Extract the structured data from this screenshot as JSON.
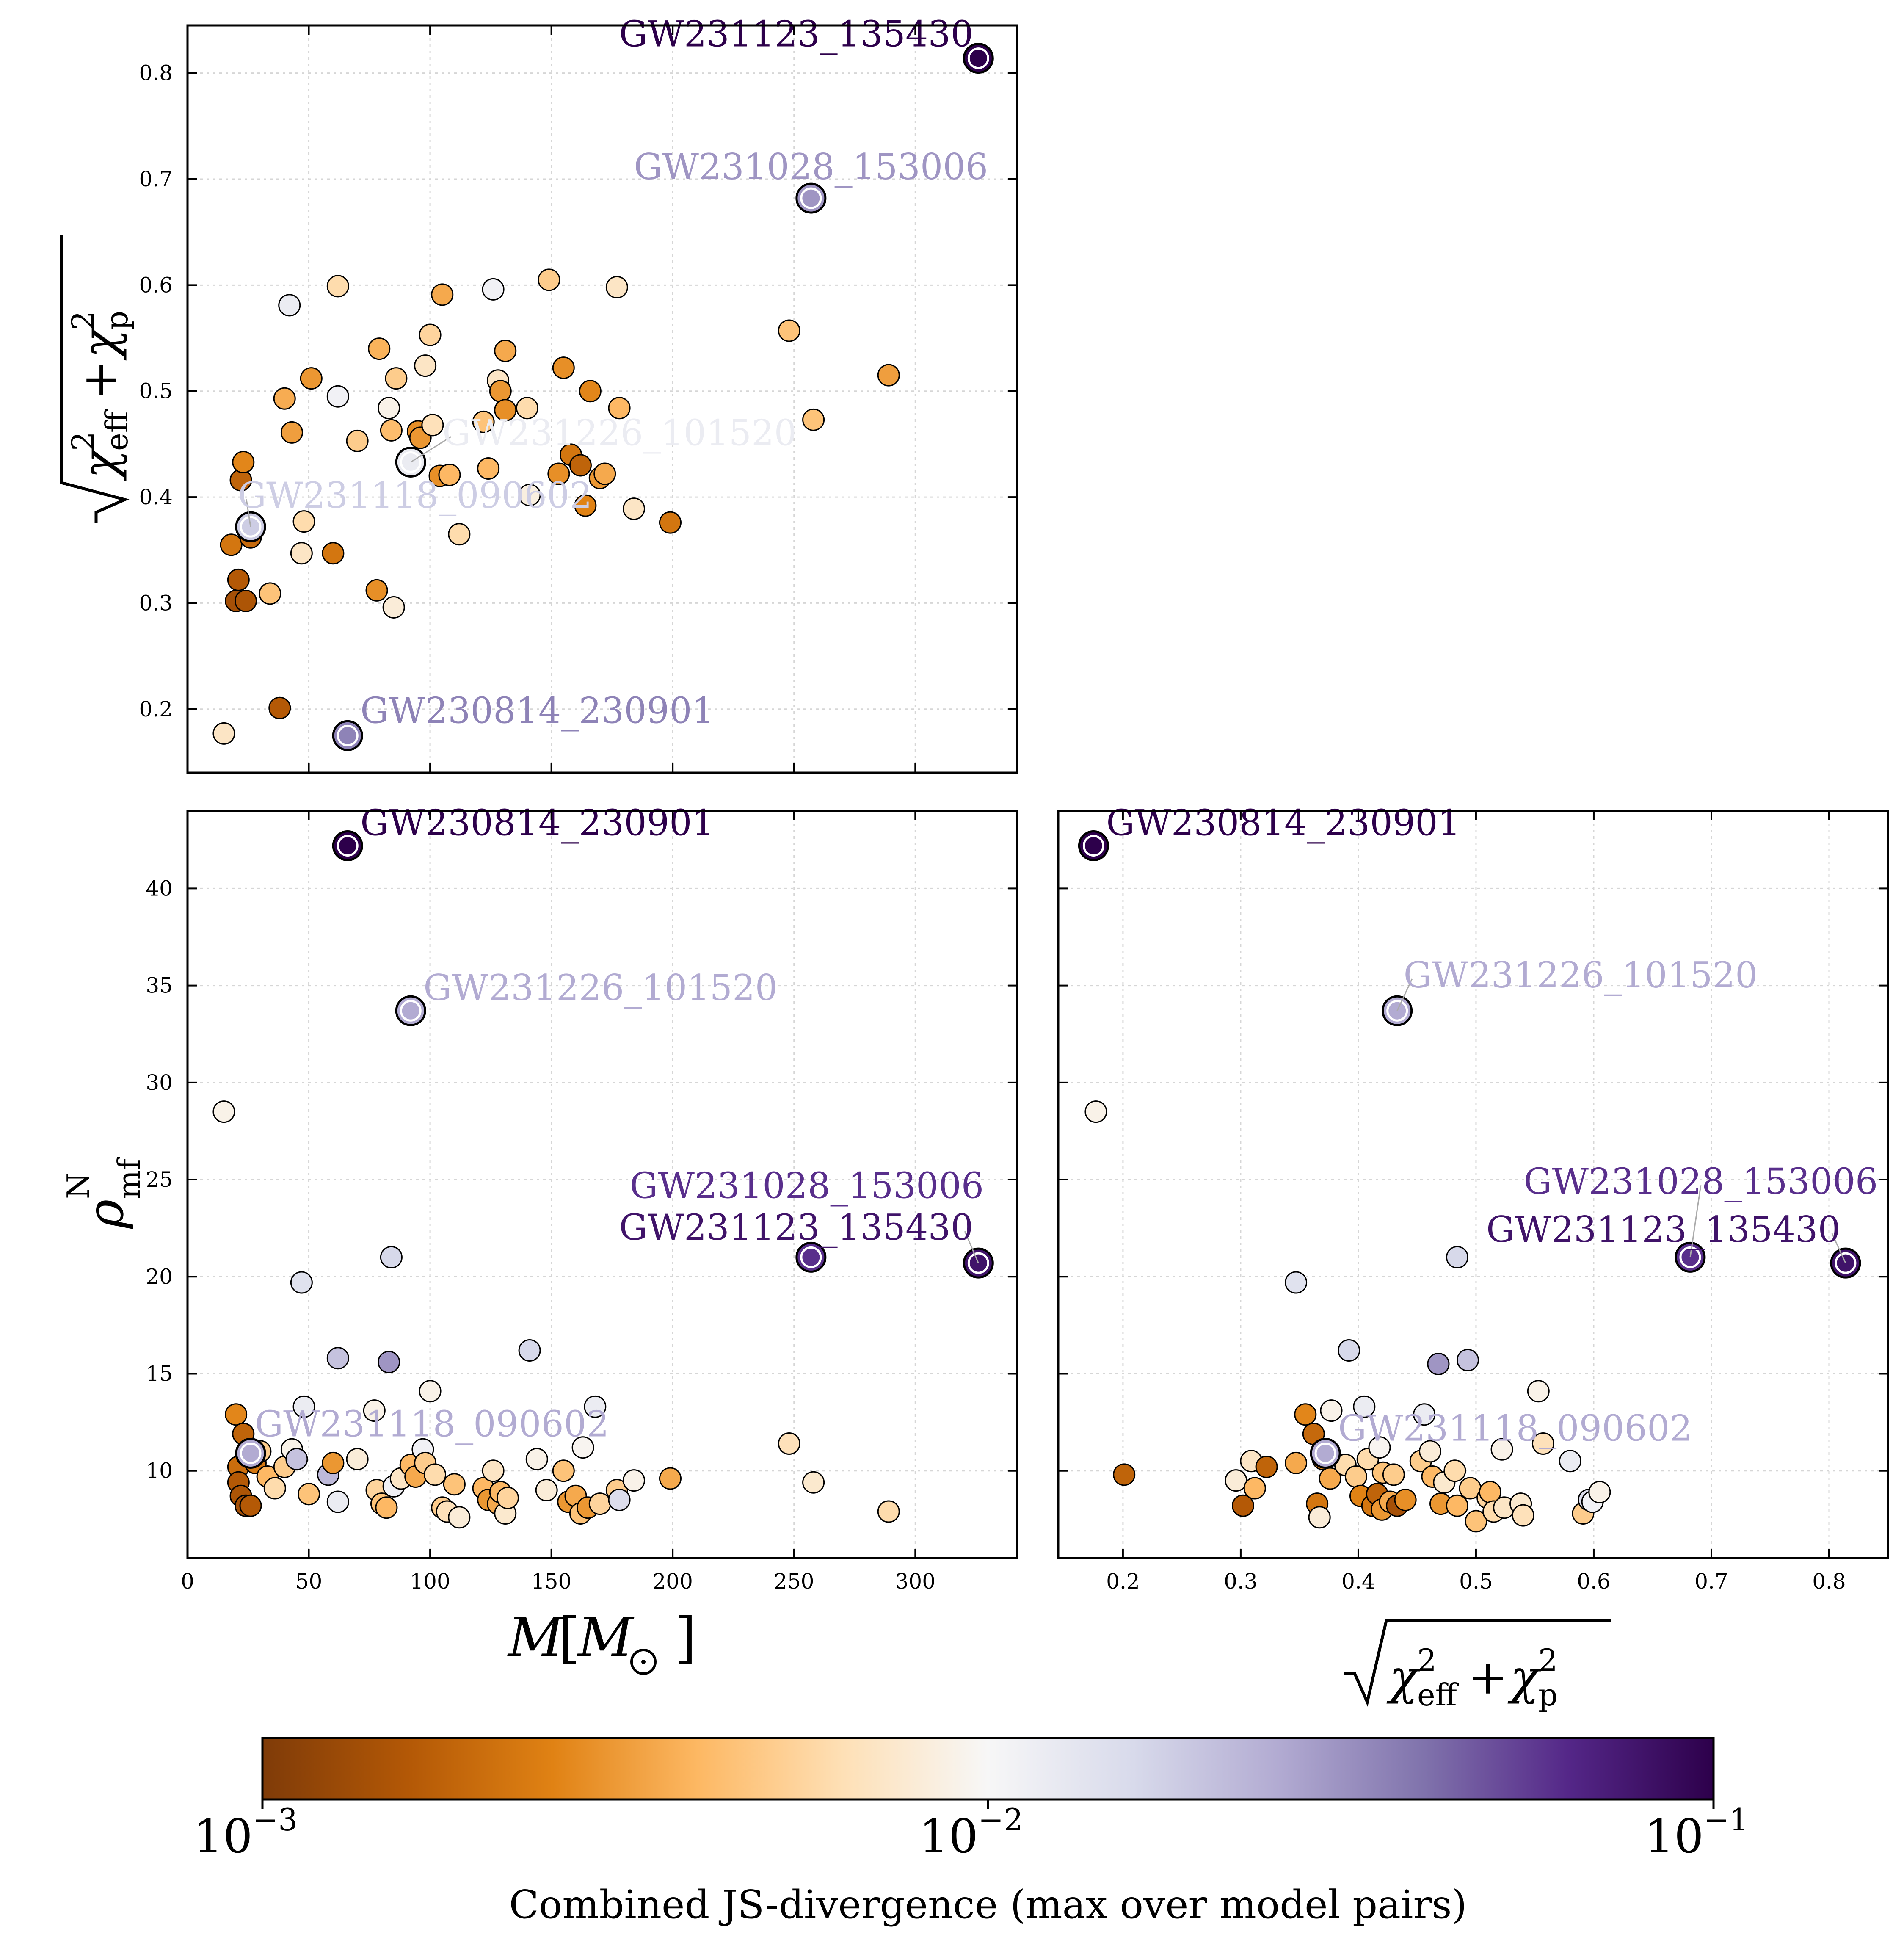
{
  "chart_data": [
    {
      "type": "scatter",
      "panel": "top-left",
      "xlabel": "",
      "ylabel": "sqrt(chi_eff^2 + chi_p^2)",
      "xlim": [
        0,
        342
      ],
      "ylim": [
        0.14,
        0.845
      ],
      "xticks": [
        0,
        50,
        100,
        150,
        200,
        250,
        300
      ],
      "xtick_labels": [
        "",
        "",
        "",
        "",
        "",
        "",
        ""
      ],
      "yticks": [
        0.2,
        0.3,
        0.4,
        0.5,
        0.6,
        0.7,
        0.8
      ],
      "ytick_labels": [
        "0.2",
        "0.3",
        "0.4",
        "0.5",
        "0.6",
        "0.7",
        "0.8"
      ],
      "grid": true,
      "highlighted": [
        {
          "name": "GW231123_135430",
          "x": 326,
          "y": 0.814,
          "js": 0.1,
          "label_anchor": "left"
        },
        {
          "name": "GW231028_153006",
          "x": 257,
          "y": 0.682,
          "js": 0.03,
          "label_anchor": "above"
        },
        {
          "name": "GW231226_101520",
          "x": 92,
          "y": 0.433,
          "js": 0.012,
          "label_anchor": "right"
        },
        {
          "name": "GW231118_090602",
          "x": 26,
          "y": 0.372,
          "js": 0.018,
          "label_anchor": "above-right"
        },
        {
          "name": "GW230814_230901",
          "x": 66,
          "y": 0.175,
          "js": 0.035,
          "label_anchor": "right"
        }
      ],
      "points": [
        [
          15,
          0.177,
          0.007
        ],
        [
          18,
          0.355,
          0.0022
        ],
        [
          20,
          0.302,
          0.0014
        ],
        [
          21,
          0.322,
          0.0016
        ],
        [
          22,
          0.416,
          0.0018
        ],
        [
          23,
          0.433,
          0.0026
        ],
        [
          24,
          0.302,
          0.0015
        ],
        [
          25,
          0.37,
          0.0017
        ],
        [
          26,
          0.362,
          0.0019
        ],
        [
          34,
          0.309,
          0.0045
        ],
        [
          38,
          0.201,
          0.0016
        ],
        [
          40,
          0.493,
          0.0036
        ],
        [
          42,
          0.581,
          0.012
        ],
        [
          43,
          0.461,
          0.0032
        ],
        [
          47,
          0.347,
          0.007
        ],
        [
          48,
          0.377,
          0.006
        ],
        [
          51,
          0.512,
          0.003
        ],
        [
          60,
          0.347,
          0.0022
        ],
        [
          62,
          0.599,
          0.006
        ],
        [
          62,
          0.495,
          0.011
        ],
        [
          70,
          0.453,
          0.005
        ],
        [
          78,
          0.312,
          0.0028
        ],
        [
          79,
          0.54,
          0.0038
        ],
        [
          83,
          0.484,
          0.009
        ],
        [
          84,
          0.463,
          0.0042
        ],
        [
          85,
          0.296,
          0.008
        ],
        [
          86,
          0.512,
          0.005
        ],
        [
          95,
          0.462,
          0.0028
        ],
        [
          96,
          0.456,
          0.003
        ],
        [
          98,
          0.524,
          0.007
        ],
        [
          100,
          0.553,
          0.0055
        ],
        [
          101,
          0.468,
          0.0065
        ],
        [
          104,
          0.42,
          0.0028
        ],
        [
          105,
          0.591,
          0.0035
        ],
        [
          108,
          0.421,
          0.004
        ],
        [
          112,
          0.365,
          0.006
        ],
        [
          122,
          0.471,
          0.0045
        ],
        [
          124,
          0.427,
          0.004
        ],
        [
          126,
          0.596,
          0.011
        ],
        [
          128,
          0.51,
          0.007
        ],
        [
          129,
          0.5,
          0.003
        ],
        [
          131,
          0.538,
          0.0035
        ],
        [
          131,
          0.482,
          0.0028
        ],
        [
          140,
          0.484,
          0.006
        ],
        [
          141,
          0.402,
          0.0085
        ],
        [
          149,
          0.605,
          0.005
        ],
        [
          153,
          0.422,
          0.0028
        ],
        [
          155,
          0.522,
          0.0028
        ],
        [
          158,
          0.44,
          0.0022
        ],
        [
          162,
          0.43,
          0.0018
        ],
        [
          164,
          0.392,
          0.0025
        ],
        [
          166,
          0.5,
          0.0026
        ],
        [
          170,
          0.418,
          0.003
        ],
        [
          172,
          0.422,
          0.0035
        ],
        [
          177,
          0.598,
          0.007
        ],
        [
          178,
          0.484,
          0.004
        ],
        [
          184,
          0.389,
          0.007
        ],
        [
          199,
          0.376,
          0.0022
        ],
        [
          248,
          0.557,
          0.0045
        ],
        [
          258,
          0.473,
          0.0045
        ],
        [
          289,
          0.515,
          0.0032
        ]
      ]
    },
    {
      "type": "scatter",
      "panel": "bottom-left",
      "xlabel": "M [M_sun]",
      "ylabel": "rho_mf^N",
      "xlim": [
        0,
        342
      ],
      "ylim": [
        5.5,
        44
      ],
      "xticks": [
        0,
        50,
        100,
        150,
        200,
        250,
        300
      ],
      "xtick_labels": [
        "0",
        "50",
        "100",
        "150",
        "200",
        "250",
        "300"
      ],
      "yticks": [
        10,
        15,
        20,
        25,
        30,
        35,
        40
      ],
      "ytick_labels": [
        "10",
        "15",
        "20",
        "25",
        "30",
        "35",
        "40"
      ],
      "grid": true,
      "highlighted": [
        {
          "name": "GW230814_230901",
          "x": 66,
          "y": 42.2,
          "js": 0.1,
          "label_anchor": "right"
        },
        {
          "name": "GW231226_101520",
          "x": 92,
          "y": 33.7,
          "js": 0.025,
          "label_anchor": "right"
        },
        {
          "name": "GW231028_153006",
          "x": 257,
          "y": 21.0,
          "js": 0.06,
          "label_anchor": "above"
        },
        {
          "name": "GW231123_135430",
          "x": 326,
          "y": 20.7,
          "js": 0.08,
          "label_anchor": "left"
        },
        {
          "name": "GW231118_090602",
          "x": 26,
          "y": 10.9,
          "js": 0.025,
          "label_anchor": "above-right"
        }
      ],
      "points": [
        [
          15,
          28.5,
          0.009
        ],
        [
          20,
          12.9,
          0.0026
        ],
        [
          21,
          10.2,
          0.002
        ],
        [
          21,
          9.4,
          0.0016
        ],
        [
          22,
          8.7,
          0.0015
        ],
        [
          23,
          11.9,
          0.0018
        ],
        [
          24,
          8.2,
          0.0014
        ],
        [
          26,
          8.2,
          0.0016
        ],
        [
          28,
          10.4,
          0.0022
        ],
        [
          30,
          11.0,
          0.005
        ],
        [
          33,
          9.7,
          0.004
        ],
        [
          36,
          9.1,
          0.006
        ],
        [
          40,
          10.2,
          0.005
        ],
        [
          43,
          11.1,
          0.009
        ],
        [
          45,
          10.6,
          0.02
        ],
        [
          47,
          19.7,
          0.014
        ],
        [
          48,
          13.3,
          0.012
        ],
        [
          50,
          8.8,
          0.0045
        ],
        [
          58,
          9.8,
          0.022
        ],
        [
          60,
          10.4,
          0.003
        ],
        [
          62,
          15.8,
          0.02
        ],
        [
          62,
          8.4,
          0.012
        ],
        [
          70,
          10.6,
          0.008
        ],
        [
          77,
          13.1,
          0.009
        ],
        [
          78,
          9.0,
          0.0055
        ],
        [
          80,
          8.3,
          0.0045
        ],
        [
          82,
          8.1,
          0.004
        ],
        [
          83,
          15.6,
          0.03
        ],
        [
          84,
          21.0,
          0.016
        ],
        [
          85,
          9.2,
          0.011
        ],
        [
          88,
          9.6,
          0.007
        ],
        [
          92,
          10.3,
          0.004
        ],
        [
          94,
          9.7,
          0.0035
        ],
        [
          97,
          11.1,
          0.011
        ],
        [
          98,
          10.4,
          0.005
        ],
        [
          100,
          14.1,
          0.009
        ],
        [
          102,
          9.8,
          0.006
        ],
        [
          105,
          8.1,
          0.005
        ],
        [
          107,
          7.9,
          0.0065
        ],
        [
          110,
          9.3,
          0.0045
        ],
        [
          112,
          7.6,
          0.008
        ],
        [
          122,
          9.1,
          0.004
        ],
        [
          124,
          8.5,
          0.003
        ],
        [
          126,
          10.0,
          0.007
        ],
        [
          128,
          8.3,
          0.0035
        ],
        [
          129,
          8.9,
          0.004
        ],
        [
          131,
          7.8,
          0.0075
        ],
        [
          132,
          8.6,
          0.0055
        ],
        [
          141,
          16.2,
          0.016
        ],
        [
          144,
          10.6,
          0.009
        ],
        [
          148,
          9.0,
          0.008
        ],
        [
          155,
          10.0,
          0.0045
        ],
        [
          157,
          8.4,
          0.003
        ],
        [
          160,
          8.7,
          0.0035
        ],
        [
          162,
          7.8,
          0.0045
        ],
        [
          163,
          11.2,
          0.0095
        ],
        [
          165,
          8.1,
          0.003
        ],
        [
          168,
          13.3,
          0.012
        ],
        [
          170,
          8.3,
          0.0055
        ],
        [
          177,
          9.0,
          0.005
        ],
        [
          178,
          8.5,
          0.015
        ],
        [
          184,
          9.5,
          0.009
        ],
        [
          199,
          9.6,
          0.0035
        ],
        [
          248,
          11.4,
          0.0065
        ],
        [
          258,
          9.4,
          0.0075
        ],
        [
          289,
          7.9,
          0.006
        ]
      ]
    },
    {
      "type": "scatter",
      "panel": "bottom-right",
      "xlabel": "sqrt(chi_eff^2 + chi_p^2)",
      "ylabel": "",
      "xlim": [
        0.145,
        0.85
      ],
      "ylim": [
        5.5,
        44
      ],
      "xticks": [
        0.2,
        0.3,
        0.4,
        0.5,
        0.6,
        0.7,
        0.8
      ],
      "xtick_labels": [
        "0.2",
        "0.3",
        "0.4",
        "0.5",
        "0.6",
        "0.7",
        "0.8"
      ],
      "yticks": [
        10,
        15,
        20,
        25,
        30,
        35,
        40
      ],
      "ytick_labels": [
        "",
        "",
        "",
        "",
        "",
        "",
        ""
      ],
      "grid": true,
      "highlighted": [
        {
          "name": "GW230814_230901",
          "x": 0.175,
          "y": 42.2,
          "js": 0.1,
          "label_anchor": "right"
        },
        {
          "name": "GW231226_101520",
          "x": 0.433,
          "y": 33.7,
          "js": 0.025,
          "label_anchor": "above-right"
        },
        {
          "name": "GW231028_153006",
          "x": 0.682,
          "y": 21.0,
          "js": 0.06,
          "label_anchor": "above"
        },
        {
          "name": "GW231123_135430",
          "x": 0.814,
          "y": 20.7,
          "js": 0.08,
          "label_anchor": "left"
        },
        {
          "name": "GW231118_090602",
          "x": 0.372,
          "y": 10.9,
          "js": 0.025,
          "label_anchor": "above-right"
        }
      ],
      "points": [
        [
          0.177,
          28.5,
          0.009
        ],
        [
          0.201,
          9.8,
          0.0018
        ],
        [
          0.296,
          9.5,
          0.008
        ],
        [
          0.302,
          8.2,
          0.0016
        ],
        [
          0.309,
          10.5,
          0.007
        ],
        [
          0.312,
          9.1,
          0.004
        ],
        [
          0.322,
          10.2,
          0.0018
        ],
        [
          0.347,
          19.7,
          0.014
        ],
        [
          0.347,
          10.4,
          0.0035
        ],
        [
          0.355,
          12.9,
          0.0026
        ],
        [
          0.362,
          11.9,
          0.0019
        ],
        [
          0.365,
          8.3,
          0.0022
        ],
        [
          0.367,
          7.6,
          0.008
        ],
        [
          0.37,
          10.6,
          0.0025
        ],
        [
          0.376,
          9.6,
          0.0035
        ],
        [
          0.377,
          13.1,
          0.009
        ],
        [
          0.389,
          10.3,
          0.006
        ],
        [
          0.392,
          16.2,
          0.016
        ],
        [
          0.398,
          9.7,
          0.005
        ],
        [
          0.402,
          8.7,
          0.0025
        ],
        [
          0.405,
          13.3,
          0.012
        ],
        [
          0.408,
          10.6,
          0.006
        ],
        [
          0.412,
          8.2,
          0.0022
        ],
        [
          0.416,
          8.8,
          0.0018
        ],
        [
          0.418,
          11.2,
          0.0095
        ],
        [
          0.42,
          8.0,
          0.003
        ],
        [
          0.421,
          9.9,
          0.0045
        ],
        [
          0.427,
          8.4,
          0.0035
        ],
        [
          0.43,
          9.8,
          0.005
        ],
        [
          0.433,
          8.2,
          0.0014
        ],
        [
          0.44,
          8.5,
          0.0028
        ],
        [
          0.453,
          10.5,
          0.005
        ],
        [
          0.456,
          12.9,
          0.012
        ],
        [
          0.461,
          11.0,
          0.008
        ],
        [
          0.463,
          9.7,
          0.004
        ],
        [
          0.468,
          15.5,
          0.03
        ],
        [
          0.47,
          8.3,
          0.003
        ],
        [
          0.473,
          9.4,
          0.0075
        ],
        [
          0.482,
          10.0,
          0.006
        ],
        [
          0.484,
          21.0,
          0.016
        ],
        [
          0.484,
          8.2,
          0.004
        ],
        [
          0.493,
          15.7,
          0.02
        ],
        [
          0.495,
          9.1,
          0.005
        ],
        [
          0.5,
          7.4,
          0.0045
        ],
        [
          0.51,
          8.6,
          0.0055
        ],
        [
          0.512,
          8.9,
          0.004
        ],
        [
          0.515,
          7.9,
          0.006
        ],
        [
          0.522,
          11.1,
          0.009
        ],
        [
          0.524,
          8.1,
          0.007
        ],
        [
          0.538,
          8.3,
          0.0075
        ],
        [
          0.54,
          7.7,
          0.0065
        ],
        [
          0.553,
          14.1,
          0.009
        ],
        [
          0.557,
          11.4,
          0.0065
        ],
        [
          0.58,
          10.5,
          0.012
        ],
        [
          0.591,
          7.8,
          0.005
        ],
        [
          0.596,
          8.5,
          0.015
        ],
        [
          0.599,
          8.4,
          0.011
        ],
        [
          0.605,
          8.9,
          0.009
        ]
      ]
    }
  ],
  "colorbar": {
    "label": "Combined JS-divergence (max over model pairs)",
    "scale": "log",
    "range": [
      0.001,
      0.1
    ],
    "ticks": [
      {
        "value": 0.001,
        "base": "10",
        "exponent": "−3"
      },
      {
        "value": 0.01,
        "base": "10",
        "exponent": "−2"
      },
      {
        "value": 0.1,
        "base": "10",
        "exponent": "−1"
      }
    ],
    "colormap": "PuOr",
    "colors": [
      "#7f3b08",
      "#b35806",
      "#e08214",
      "#fdb863",
      "#fee0b6",
      "#f7f7f7",
      "#d8daeb",
      "#b2abd2",
      "#8073ac",
      "#542788",
      "#2d004b"
    ]
  }
}
